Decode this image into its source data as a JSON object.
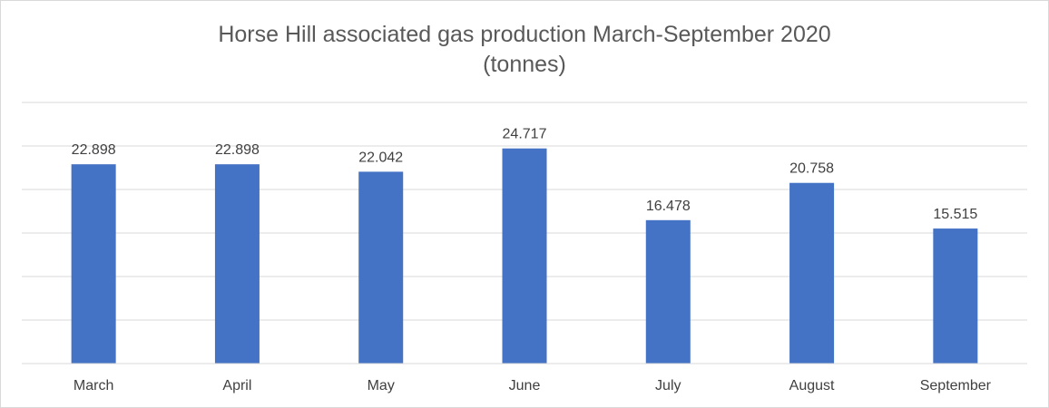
{
  "chart_data": {
    "type": "bar",
    "title": "Horse Hill associated gas production March-September 2020",
    "subtitle": "(tonnes)",
    "categories": [
      "March",
      "April",
      "May",
      "June",
      "July",
      "August",
      "September"
    ],
    "values": [
      22.898,
      22.898,
      22.042,
      24.717,
      16.478,
      20.758,
      15.515
    ],
    "data_labels": [
      "22.898",
      "22.898",
      "22.042",
      "24.717",
      "16.478",
      "20.758",
      "15.515"
    ],
    "xlabel": "",
    "ylabel": "",
    "ylim": [
      0,
      30
    ],
    "ytick_step": 5,
    "y_tick_labels_visible": false,
    "grid": true,
    "legend": "none",
    "colors": {
      "bar": "#4472c4",
      "grid": "#d9d9d9",
      "text": "#404040",
      "title": "#595959"
    }
  }
}
